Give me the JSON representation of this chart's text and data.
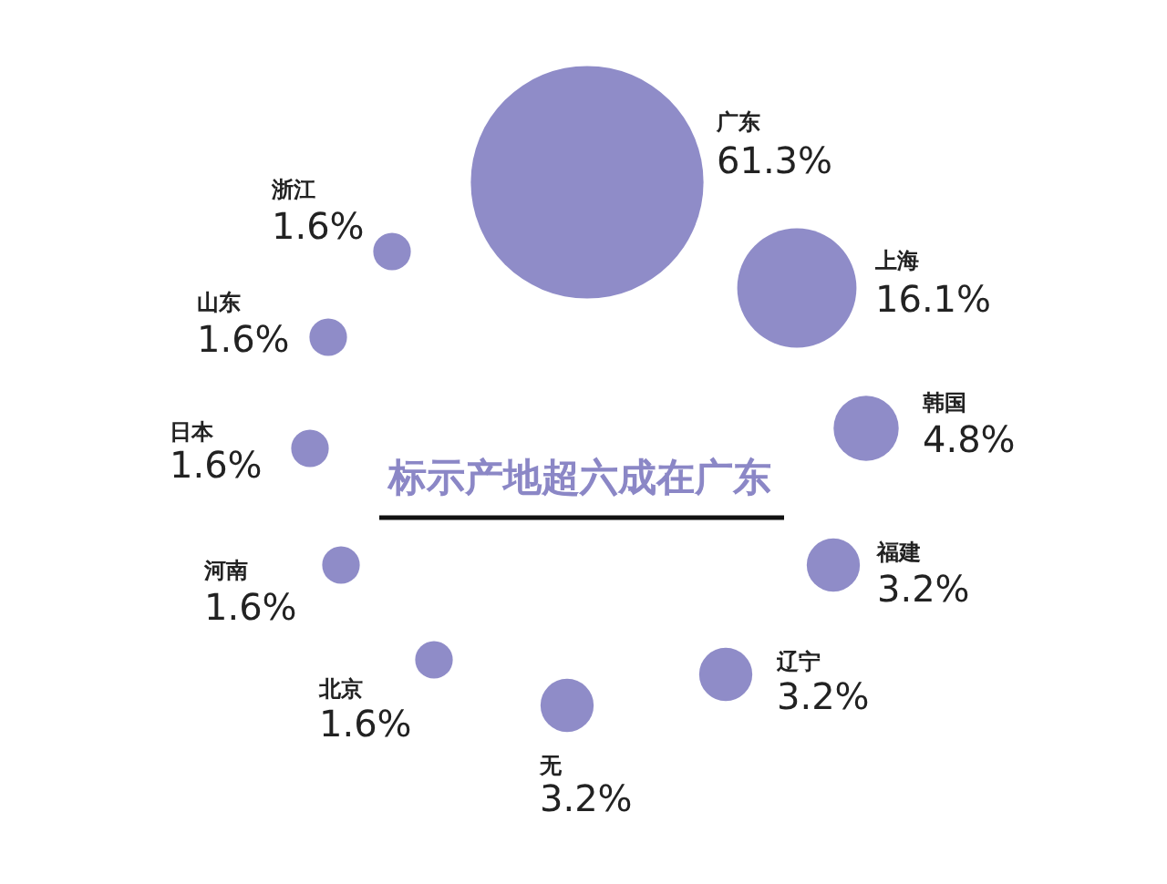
{
  "chart_data": {
    "type": "other",
    "title": "标示产地超六成在广东",
    "categories": [
      "广东",
      "上海",
      "韩国",
      "福建",
      "辽宁",
      "无",
      "北京",
      "河南",
      "日本",
      "山东",
      "浙江"
    ],
    "values": [
      61.3,
      16.1,
      4.8,
      3.2,
      3.2,
      3.2,
      1.6,
      1.6,
      1.6,
      1.6,
      1.6
    ],
    "value_labels": [
      "61.3%",
      "16.1%",
      "4.8%",
      "3.2%",
      "3.2%",
      "3.2%",
      "1.6%",
      "1.6%",
      "1.6%",
      "1.6%",
      "1.6%"
    ],
    "color": "#8f8cc8"
  }
}
